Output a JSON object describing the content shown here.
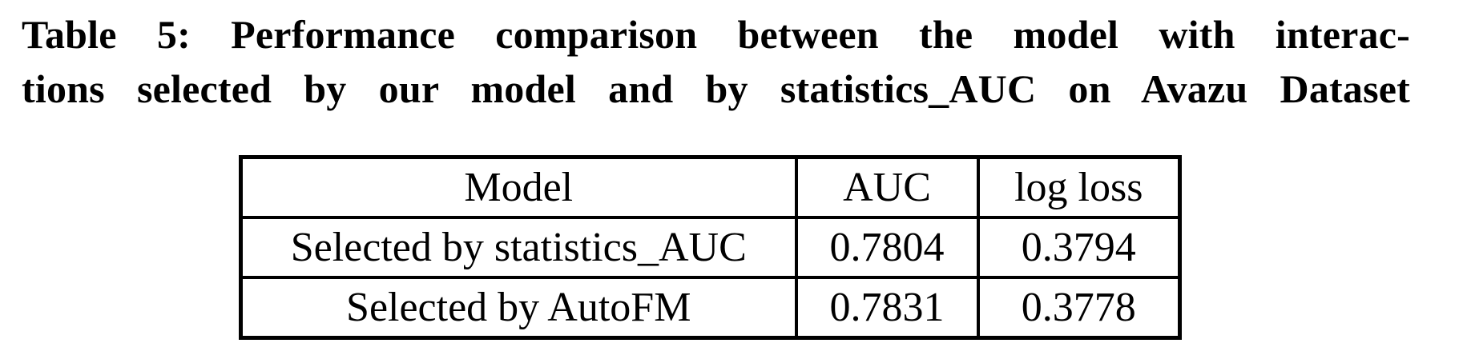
{
  "caption": {
    "line1": "Table 5: Performance comparison between the model with interac-",
    "line2": "tions selected by our model and by statistics_AUC on Avazu Dataset",
    "full_text": "Table 5: Performance comparison between the model with interactions selected by our model and by statistics_AUC on Avazu Dataset"
  },
  "table": {
    "columns": [
      "Model",
      "AUC",
      "log loss"
    ],
    "rows": [
      {
        "model": "Selected by statistics_AUC",
        "auc": "0.7804",
        "log_loss": "0.3794"
      },
      {
        "model": "Selected by AutoFM",
        "auc": "0.7831",
        "log_loss": "0.3778"
      }
    ]
  },
  "colors": {
    "text": "#000000",
    "border": "#000000",
    "background": "#ffffff"
  }
}
